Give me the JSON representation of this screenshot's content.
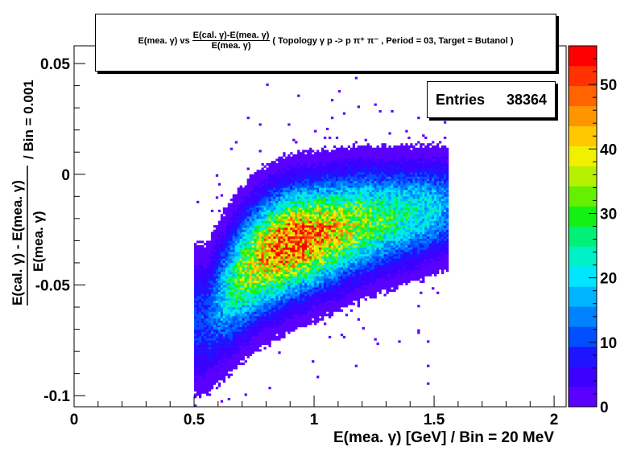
{
  "title": {
    "prefix": "E(mea. γ) vs",
    "fraction_numerator": "E(cal. γ)-E(mea. γ)",
    "fraction_denominator": "E(mea. γ)",
    "suffix": "( Topology γ p -> p π⁺ π⁻ , Period = 03, Target = Butanol )"
  },
  "stats": {
    "label": "Entries",
    "value": "38364"
  },
  "chart_data": {
    "type": "heatmap",
    "xlabel": "E(mea. γ) [GeV] / Bin = 20 MeV",
    "ylabel": {
      "numerator": "E(cal. γ) - E(mea. γ)",
      "denominator": "E(mea. γ)",
      "suffix": "/ Bin = 0.001"
    },
    "xlim": [
      0,
      2.05
    ],
    "ylim": [
      -0.105,
      0.058
    ],
    "x_ticks": [
      0,
      0.5,
      1,
      1.5,
      2
    ],
    "x_tick_labels": [
      "0",
      "0.5",
      "1",
      "1.5",
      "2"
    ],
    "y_ticks": [
      -0.1,
      -0.05,
      0,
      0.05
    ],
    "y_tick_labels": [
      "-0.1",
      "-0.05",
      "0",
      "0.05"
    ],
    "z_range": [
      0,
      56
    ],
    "z_ticks": [
      0,
      10,
      20,
      30,
      40,
      50
    ],
    "z_tick_labels": [
      "0",
      "10",
      "20",
      "30",
      "40",
      "50"
    ],
    "entries": 38364,
    "x_bin_width": 0.02,
    "y_bin_width": 0.001,
    "populated_x_range": [
      0.5,
      1.56
    ],
    "ridge": {
      "x": [
        0.55,
        0.6,
        0.7,
        0.8,
        0.9,
        1.0,
        1.1,
        1.2,
        1.3,
        1.4,
        1.5,
        1.55
      ],
      "y_mean": [
        -0.066,
        -0.058,
        -0.045,
        -0.036,
        -0.031,
        -0.028,
        -0.025,
        -0.022,
        -0.02,
        -0.018,
        -0.016,
        -0.015
      ],
      "peak_count": [
        10,
        16,
        32,
        44,
        52,
        48,
        40,
        34,
        28,
        24,
        20,
        16
      ]
    }
  },
  "colors": {
    "palette": [
      "#5a00ff",
      "#3c00ff",
      "#1e14ff",
      "#0050ff",
      "#0082ff",
      "#00b4ff",
      "#00e6ff",
      "#00f0c8",
      "#00f078",
      "#14f014",
      "#64f000",
      "#b4f000",
      "#f0f000",
      "#ffc800",
      "#ff9600",
      "#ff6400",
      "#ff3200",
      "#ff0000"
    ],
    "frame": "#000000",
    "background": "#ffffff"
  }
}
